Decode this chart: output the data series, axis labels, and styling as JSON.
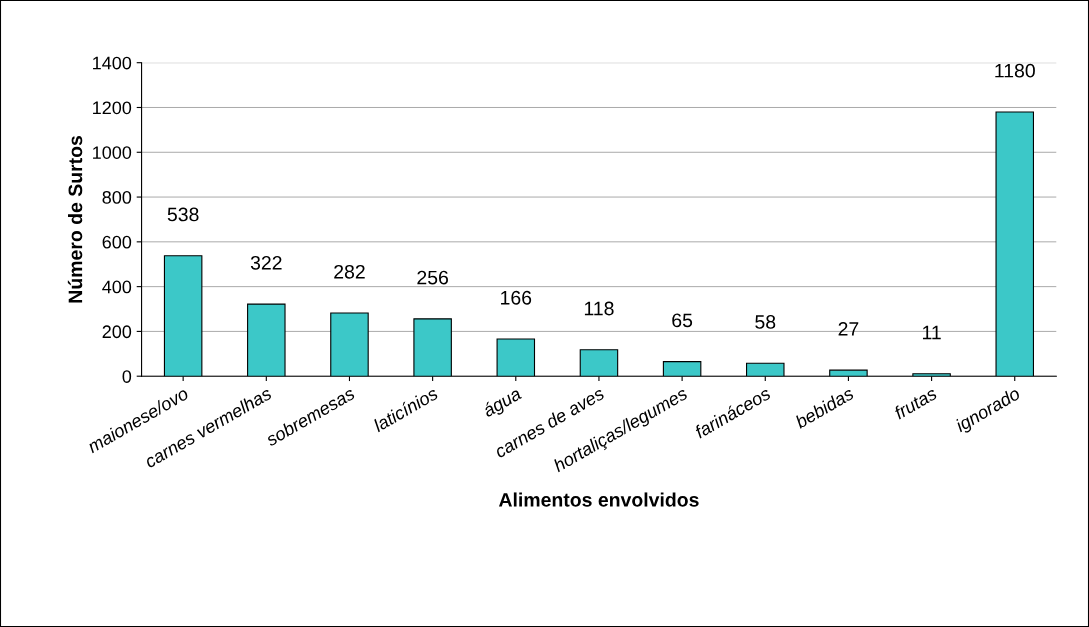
{
  "chart_data": {
    "type": "bar",
    "xlabel": "Alimentos envolvidos",
    "ylabel": "Número de Surtos",
    "categories": [
      "maionese/ovo",
      "carnes vermelhas",
      "sobremesas",
      "laticínios",
      "água",
      "carnes de aves",
      "hortaliças/legumes",
      "farináceos",
      "bebidas",
      "frutas",
      "ignorado"
    ],
    "values": [
      538,
      322,
      282,
      256,
      166,
      118,
      65,
      58,
      27,
      11,
      1180
    ],
    "color": "#3cc8c8",
    "ylim": [
      0,
      1400
    ],
    "yticks": [
      0,
      200,
      400,
      600,
      800,
      1000,
      1200,
      1400
    ],
    "grid": "y",
    "data_labels": true
  }
}
